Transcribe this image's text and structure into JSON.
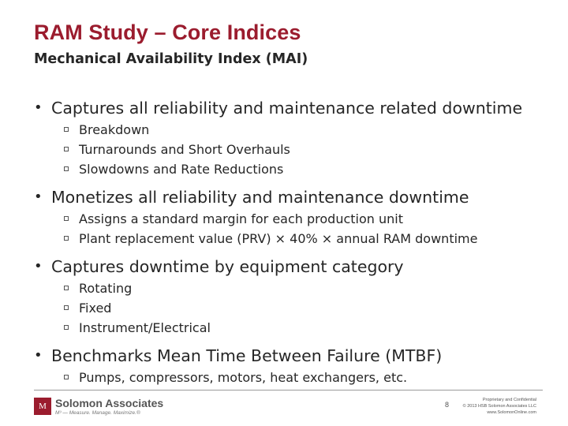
{
  "slide": {
    "title": "RAM Study – Core Indices",
    "subtitle": "Mechanical Availability Index (MAI)"
  },
  "bullets": [
    {
      "text": "Captures all reliability and maintenance related downtime",
      "subs": [
        "Breakdown",
        "Turnarounds and Short Overhauls",
        "Slowdowns and Rate Reductions"
      ]
    },
    {
      "text": "Monetizes all reliability and maintenance downtime",
      "subs": [
        "Assigns a standard margin for each production unit",
        "Plant replacement value (PRV) × 40% × annual RAM downtime"
      ]
    },
    {
      "text": "Captures downtime by equipment category",
      "subs": [
        "Rotating",
        "Fixed",
        "Instrument/Electrical"
      ]
    },
    {
      "text": "Benchmarks Mean Time Between Failure (MTBF)",
      "subs": [
        "Pumps, compressors, motors, heat exchangers, etc."
      ]
    }
  ],
  "footer": {
    "logo_mark": "M",
    "company": "Solomon Associates",
    "tagline": "M³ — Measure. Manage. Maximize.®",
    "page_number": "8",
    "legal": [
      "Proprietary and Confidential",
      "© 2013 HSB Solomon Associates LLC",
      "www.SolomonOnline.com"
    ]
  },
  "colors": {
    "accent": "#9b1c2e",
    "text": "#262626"
  }
}
